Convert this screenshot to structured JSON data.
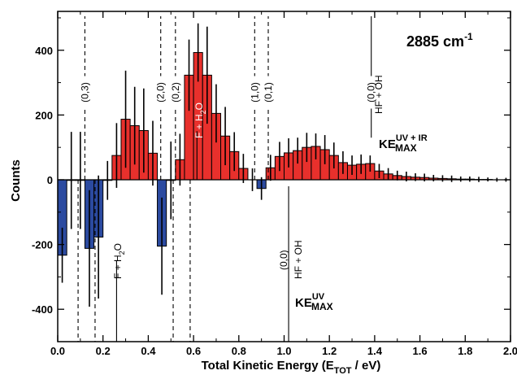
{
  "chart_data": {
    "type": "bar",
    "xlabel": "Total Kinetic Energy (E",
    "xlabel_sub": "TOT",
    "xlabel_end": " / eV)",
    "ylabel": "Counts",
    "xlim": [
      0.0,
      2.0
    ],
    "ylim": [
      -500,
      520
    ],
    "x_ticks": [
      "0.0",
      "0.2",
      "0.4",
      "0.6",
      "0.8",
      "1.0",
      "1.2",
      "1.4",
      "1.6",
      "1.8",
      "2.0"
    ],
    "y_ticks": [
      "-400",
      "-200",
      "0",
      "200",
      "400"
    ],
    "bin_width": 0.04,
    "positive_color": "#e8302c",
    "negative_color": "#2b4aa0",
    "bins": [
      {
        "x": 0.0,
        "v": -233,
        "e": 85
      },
      {
        "x": 0.04,
        "v": -2,
        "e": 150
      },
      {
        "x": 0.08,
        "v": -2,
        "e": 150
      },
      {
        "x": 0.12,
        "v": -212,
        "e": 180
      },
      {
        "x": 0.16,
        "v": -177,
        "e": 190
      },
      {
        "x": 0.2,
        "v": -2,
        "e": 60
      },
      {
        "x": 0.24,
        "v": 75,
        "e": 100
      },
      {
        "x": 0.28,
        "v": 187,
        "e": 150
      },
      {
        "x": 0.32,
        "v": 167,
        "e": 120
      },
      {
        "x": 0.36,
        "v": 152,
        "e": 130
      },
      {
        "x": 0.4,
        "v": 82,
        "e": 100
      },
      {
        "x": 0.44,
        "v": -205,
        "e": 150
      },
      {
        "x": 0.48,
        "v": -2,
        "e": 120
      },
      {
        "x": 0.52,
        "v": 62,
        "e": 80
      },
      {
        "x": 0.56,
        "v": 323,
        "e": 110
      },
      {
        "x": 0.6,
        "v": 393,
        "e": 90
      },
      {
        "x": 0.64,
        "v": 323,
        "e": 150
      },
      {
        "x": 0.68,
        "v": 205,
        "e": 90
      },
      {
        "x": 0.72,
        "v": 135,
        "e": 90
      },
      {
        "x": 0.76,
        "v": 87,
        "e": 60
      },
      {
        "x": 0.8,
        "v": 35,
        "e": 45
      },
      {
        "x": 0.84,
        "v": 0,
        "e": 35
      },
      {
        "x": 0.88,
        "v": -27,
        "e": 35
      },
      {
        "x": 0.92,
        "v": 37,
        "e": 40
      },
      {
        "x": 0.96,
        "v": 72,
        "e": 45
      },
      {
        "x": 1.0,
        "v": 83,
        "e": 45
      },
      {
        "x": 1.04,
        "v": 90,
        "e": 40
      },
      {
        "x": 1.08,
        "v": 100,
        "e": 45
      },
      {
        "x": 1.12,
        "v": 103,
        "e": 40
      },
      {
        "x": 1.16,
        "v": 93,
        "e": 45
      },
      {
        "x": 1.2,
        "v": 75,
        "e": 40
      },
      {
        "x": 1.24,
        "v": 53,
        "e": 35
      },
      {
        "x": 1.28,
        "v": 45,
        "e": 30
      },
      {
        "x": 1.32,
        "v": 48,
        "e": 30
      },
      {
        "x": 1.36,
        "v": 50,
        "e": 25
      },
      {
        "x": 1.4,
        "v": 27,
        "e": 22
      },
      {
        "x": 1.44,
        "v": 18,
        "e": 18
      },
      {
        "x": 1.48,
        "v": 13,
        "e": 15
      },
      {
        "x": 1.52,
        "v": 10,
        "e": 15
      },
      {
        "x": 1.56,
        "v": 8,
        "e": 12
      },
      {
        "x": 1.6,
        "v": 7,
        "e": 12
      },
      {
        "x": 1.64,
        "v": 5,
        "e": 10
      },
      {
        "x": 1.68,
        "v": 4,
        "e": 10
      },
      {
        "x": 1.72,
        "v": 3,
        "e": 10
      },
      {
        "x": 1.76,
        "v": 2,
        "e": 8
      },
      {
        "x": 1.8,
        "v": 2,
        "e": 8
      },
      {
        "x": 1.84,
        "v": 1,
        "e": 8
      },
      {
        "x": 1.88,
        "v": 1,
        "e": 6
      },
      {
        "x": 1.92,
        "v": 0,
        "e": 6
      },
      {
        "x": 1.96,
        "v": 0,
        "e": 6
      }
    ],
    "upper_lines": [
      {
        "x": 0.12,
        "label": "(0,3)",
        "style": "dashed",
        "from": 0,
        "to": 505,
        "label_y": 270
      },
      {
        "x": 0.455,
        "label": "(2,0)",
        "style": "dashed",
        "from": 0,
        "to": 505,
        "label_y": 270
      },
      {
        "x": 0.52,
        "label": "(0,2)",
        "style": "dashed",
        "from": 0,
        "to": 505,
        "label_y": 270
      },
      {
        "x": 0.87,
        "label": "(1,0)",
        "style": "dashed",
        "from": 0,
        "to": 505,
        "label_y": 270
      },
      {
        "x": 0.93,
        "label": "(0,1)",
        "style": "dashed",
        "from": 0,
        "to": 505,
        "label_y": 270
      },
      {
        "x": 1.385,
        "label": "(0,0)",
        "style": "solid",
        "from": 130,
        "to": 505,
        "label_y": 270
      },
      {
        "x": 0.615,
        "label": "",
        "style": "solid",
        "from": 0,
        "to": 150,
        "label_y": 0
      }
    ],
    "lower_lines": [
      {
        "x": 0.09,
        "style": "dashed",
        "from": 0,
        "to": -500
      },
      {
        "x": 0.165,
        "style": "dashed",
        "from": 0,
        "to": -500
      },
      {
        "x": 0.51,
        "style": "dashed",
        "from": 0,
        "to": -500
      },
      {
        "x": 0.585,
        "style": "dashed",
        "from": 0,
        "to": -500
      },
      {
        "x": 0.26,
        "style": "solid",
        "from": -250,
        "to": -500
      },
      {
        "x": 1.02,
        "style": "solid",
        "from": -20,
        "to": -500
      }
    ],
    "annotations": {
      "wavenumber": "2885 cm",
      "wavenumber_sup": "-1",
      "hf_oh_upper": "HF + OH",
      "f_h2o_upper_f": "F + H",
      "f_h2o_upper_sub": "2",
      "f_h2o_upper_o": "O",
      "f_h2o_lower_f": "F + H",
      "f_h2o_lower_sub": "2",
      "f_h2o_lower_o": "O",
      "hf_oh_lower": "HF + OH",
      "lower_00": "(0,0)",
      "ke_uvir_base": "KE",
      "ke_uvir_sup": "UV + IR",
      "ke_uvir_sub": "MAX",
      "ke_uv_base": "KE",
      "ke_uv_sup": "UV",
      "ke_uv_sub": "MAX"
    }
  }
}
